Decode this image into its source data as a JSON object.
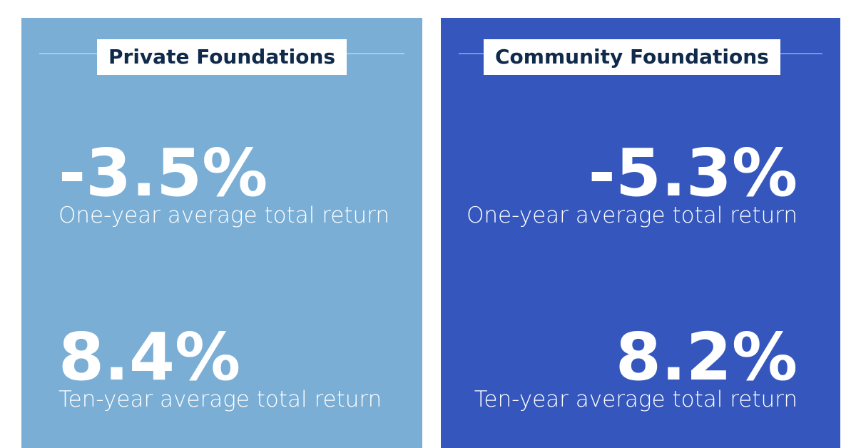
{
  "panels": [
    {
      "title": "Private Foundations",
      "stats": [
        {
          "value": "-3.5%",
          "label": "One-year average total return"
        },
        {
          "value": "8.4%",
          "label": "Ten-year average total return"
        }
      ]
    },
    {
      "title": "Community Foundations",
      "stats": [
        {
          "value": "-5.3%",
          "label": "One-year average total return"
        },
        {
          "value": "8.2%",
          "label": "Ten-year average total return"
        }
      ]
    }
  ]
}
